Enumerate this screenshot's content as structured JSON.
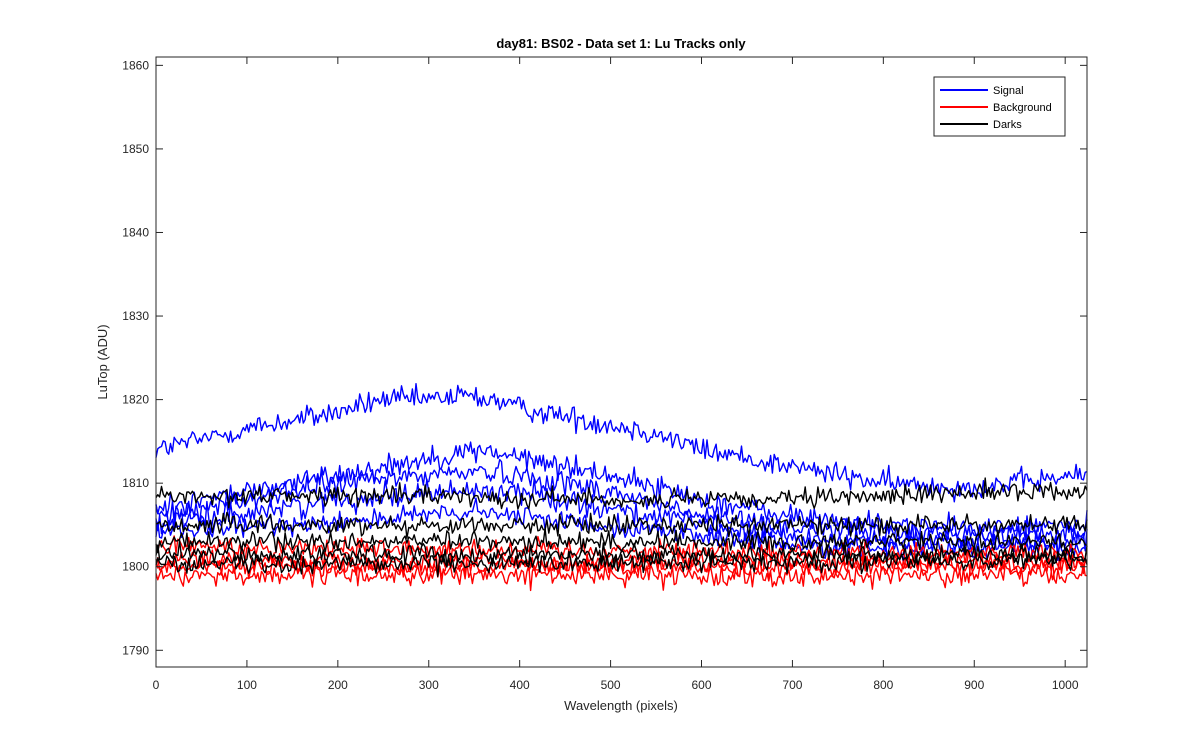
{
  "chart_data": {
    "type": "line",
    "title": "day81: BS02 - Data set 1: Lu Tracks only",
    "xlabel": "Wavelength (pixels)",
    "ylabel": "LuTop (ADU)",
    "xlim": [
      0,
      1024
    ],
    "ylim": [
      1788,
      1861
    ],
    "xticks": [
      0,
      100,
      200,
      300,
      400,
      500,
      600,
      700,
      800,
      900,
      1000
    ],
    "yticks": [
      1790,
      1800,
      1810,
      1820,
      1830,
      1840,
      1850,
      1860
    ],
    "grid": false,
    "legend_position": "top-right",
    "legend": [
      {
        "name": "Signal",
        "color": "#0000ff"
      },
      {
        "name": "Background",
        "color": "#ff0000"
      },
      {
        "name": "Darks",
        "color": "#000000"
      }
    ],
    "series": [
      {
        "group": "Signal",
        "color": "#0000ff",
        "noise": 1.0,
        "profile": [
          [
            0,
            1814
          ],
          [
            100,
            1816.5
          ],
          [
            200,
            1818.5
          ],
          [
            250,
            1820
          ],
          [
            300,
            1820
          ],
          [
            340,
            1820.5
          ],
          [
            370,
            1820
          ],
          [
            400,
            1819
          ],
          [
            450,
            1818
          ],
          [
            500,
            1817
          ],
          [
            550,
            1816
          ],
          [
            600,
            1814
          ],
          [
            650,
            1813
          ],
          [
            700,
            1812
          ],
          [
            800,
            1810
          ],
          [
            900,
            1809.5
          ],
          [
            1024,
            1811
          ]
        ]
      },
      {
        "group": "Signal",
        "color": "#0000ff",
        "noise": 1.0,
        "profile": [
          [
            0,
            1807
          ],
          [
            100,
            1809
          ],
          [
            200,
            1811
          ],
          [
            300,
            1813
          ],
          [
            360,
            1814
          ],
          [
            400,
            1813
          ],
          [
            500,
            1811
          ],
          [
            600,
            1808
          ],
          [
            700,
            1806
          ],
          [
            800,
            1805
          ],
          [
            900,
            1804.5
          ],
          [
            1024,
            1805
          ]
        ]
      },
      {
        "group": "Signal",
        "color": "#0000ff",
        "noise": 1.0,
        "profile": [
          [
            0,
            1806
          ],
          [
            100,
            1808
          ],
          [
            200,
            1810
          ],
          [
            300,
            1811
          ],
          [
            350,
            1811.5
          ],
          [
            400,
            1811
          ],
          [
            500,
            1809
          ],
          [
            600,
            1806
          ],
          [
            700,
            1805
          ],
          [
            800,
            1804
          ],
          [
            900,
            1804
          ],
          [
            1024,
            1804
          ]
        ]
      },
      {
        "group": "Signal",
        "color": "#0000ff",
        "noise": 1.0,
        "profile": [
          [
            0,
            1805
          ],
          [
            100,
            1806.5
          ],
          [
            200,
            1808
          ],
          [
            300,
            1809
          ],
          [
            400,
            1809
          ],
          [
            500,
            1807
          ],
          [
            600,
            1805
          ],
          [
            700,
            1803.5
          ],
          [
            800,
            1803
          ],
          [
            900,
            1803
          ],
          [
            1024,
            1803
          ]
        ]
      },
      {
        "group": "Signal",
        "color": "#0000ff",
        "noise": 0.9,
        "profile": [
          [
            0,
            1804
          ],
          [
            200,
            1805.5
          ],
          [
            350,
            1806.5
          ],
          [
            500,
            1805
          ],
          [
            700,
            1802.5
          ],
          [
            1024,
            1802
          ]
        ]
      },
      {
        "group": "Background",
        "color": "#ff0000",
        "noise": 0.9,
        "profile": [
          [
            0,
            1799
          ],
          [
            500,
            1799
          ],
          [
            1024,
            1799
          ]
        ]
      },
      {
        "group": "Background",
        "color": "#ff0000",
        "noise": 0.9,
        "profile": [
          [
            0,
            1801
          ],
          [
            500,
            1800.5
          ],
          [
            1024,
            1800.5
          ]
        ]
      },
      {
        "group": "Background",
        "color": "#ff0000",
        "noise": 0.9,
        "profile": [
          [
            0,
            1802.5
          ],
          [
            500,
            1802
          ],
          [
            1024,
            1801.5
          ]
        ]
      },
      {
        "group": "Background",
        "color": "#ff0000",
        "noise": 0.8,
        "profile": [
          [
            0,
            1800
          ],
          [
            500,
            1800
          ],
          [
            1024,
            1800
          ]
        ]
      },
      {
        "group": "Darks",
        "color": "#000000",
        "noise": 0.8,
        "profile": [
          [
            0,
            1808.5
          ],
          [
            300,
            1808.5
          ],
          [
            500,
            1808
          ],
          [
            700,
            1808
          ],
          [
            900,
            1809
          ],
          [
            1024,
            1809
          ]
        ]
      },
      {
        "group": "Darks",
        "color": "#000000",
        "noise": 0.8,
        "profile": [
          [
            0,
            1805
          ],
          [
            500,
            1805
          ],
          [
            1024,
            1805
          ]
        ]
      },
      {
        "group": "Darks",
        "color": "#000000",
        "noise": 0.8,
        "profile": [
          [
            0,
            1803
          ],
          [
            500,
            1803
          ],
          [
            1024,
            1803
          ]
        ]
      },
      {
        "group": "Darks",
        "color": "#000000",
        "noise": 0.8,
        "profile": [
          [
            0,
            1801.5
          ],
          [
            500,
            1801.5
          ],
          [
            1024,
            1801.5
          ]
        ]
      },
      {
        "group": "Darks",
        "color": "#000000",
        "noise": 0.8,
        "profile": [
          [
            0,
            1800.3
          ],
          [
            500,
            1800.5
          ],
          [
            1024,
            1800.8
          ]
        ]
      }
    ]
  }
}
